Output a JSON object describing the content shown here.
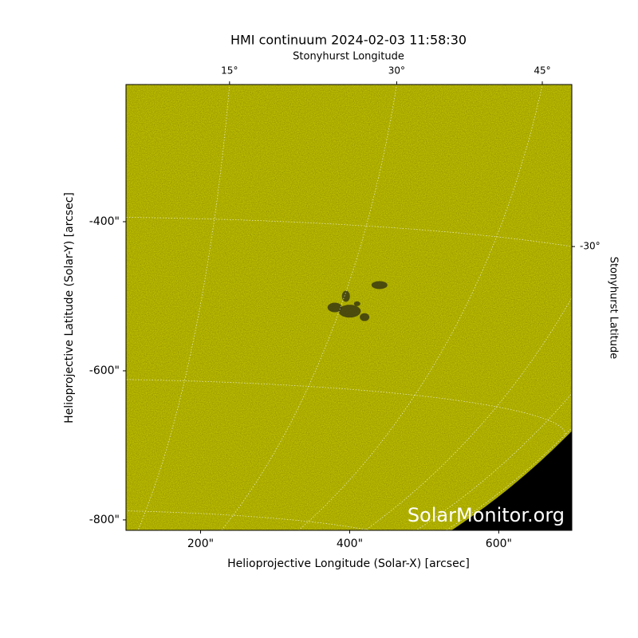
{
  "chart_data": {
    "type": "image",
    "title": "HMI continuum 2024-02-03 11:58:30",
    "xlabel": "Helioprojective Longitude (Solar-X) [arcsec]",
    "ylabel": "Helioprojective Latitude (Solar-Y) [arcsec]",
    "x2label": "Stonyhurst Longitude",
    "y2label": "Stonyhurst Latitude",
    "watermark": "SolarMonitor.org",
    "color": "#d2d200",
    "grid": true,
    "xlim": [
      100,
      698
    ],
    "ylim": [
      -814,
      -216
    ],
    "xticks": [
      {
        "value": 200,
        "label": "200\""
      },
      {
        "value": 400,
        "label": "400\""
      },
      {
        "value": 600,
        "label": "600\""
      }
    ],
    "yticks": [
      {
        "value": -400,
        "label": "-400\""
      },
      {
        "value": -600,
        "label": "-600\""
      },
      {
        "value": -800,
        "label": "-800\""
      }
    ],
    "lon_ticks": [
      {
        "value": 15,
        "label": "15°"
      },
      {
        "value": 30,
        "label": "30°"
      },
      {
        "value": 45,
        "label": "45°"
      }
    ],
    "lat_ticks": [
      {
        "value": -30,
        "label": "-30°"
      }
    ]
  }
}
